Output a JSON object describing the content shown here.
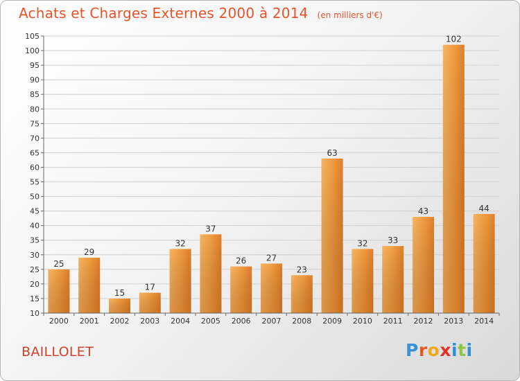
{
  "title": "Achats et Charges Externes 2000 à 2014",
  "unit": "(en milliers d'€)",
  "place": "BAILLOLET",
  "logo": {
    "letters": [
      "P",
      "r",
      "o",
      "x",
      "i",
      "t",
      "i"
    ],
    "colors": [
      "#3a8fd6",
      "#e05a2a",
      "#f2a61b",
      "#e0302c",
      "#2e8fd8",
      "#8dc63f",
      "#2e8fd8"
    ]
  },
  "colors": {
    "bar": "#f09a3e",
    "bar_light": "#f6b25e",
    "bar_dark": "#d7782a",
    "title": "#e8542a"
  },
  "chart_data": {
    "type": "bar",
    "categories": [
      "2000",
      "2001",
      "2002",
      "2003",
      "2004",
      "2005",
      "2006",
      "2007",
      "2008",
      "2009",
      "2010",
      "2011",
      "2012",
      "2013",
      "2014"
    ],
    "values": [
      25,
      29,
      15,
      17,
      32,
      37,
      26,
      27,
      23,
      63,
      32,
      33,
      43,
      102,
      44
    ],
    "ylim": [
      10,
      105
    ],
    "yticks": [
      10,
      15,
      20,
      25,
      30,
      35,
      40,
      45,
      50,
      55,
      60,
      65,
      70,
      75,
      80,
      85,
      90,
      95,
      100,
      105
    ],
    "grid": true
  }
}
